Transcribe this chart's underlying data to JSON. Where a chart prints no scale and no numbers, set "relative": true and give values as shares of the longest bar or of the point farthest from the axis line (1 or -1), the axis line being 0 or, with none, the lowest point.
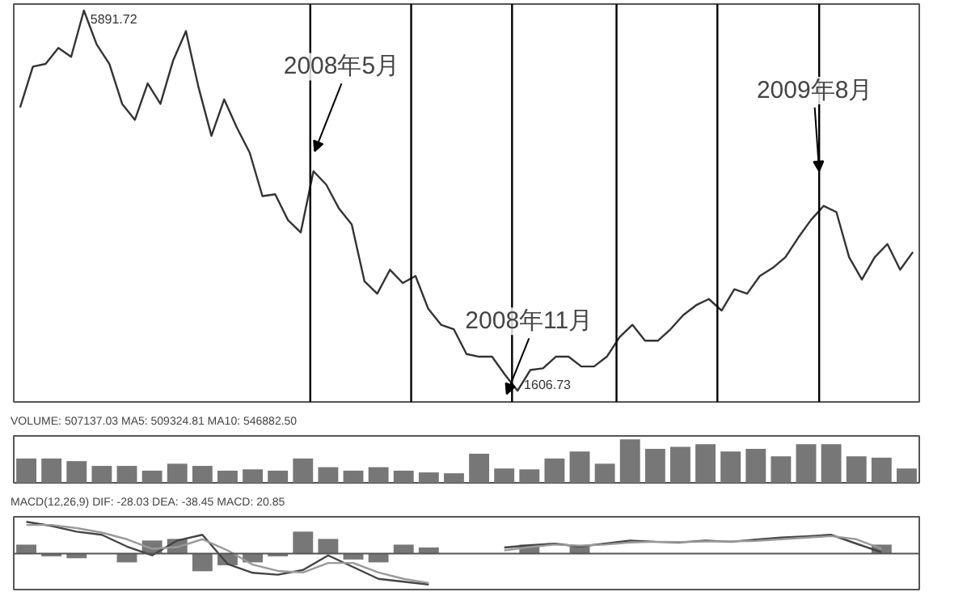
{
  "chart_data": [
    {
      "type": "line",
      "categories": [
        null,
        null,
        null,
        null,
        null,
        null,
        null,
        null,
        null,
        null,
        null,
        null,
        null,
        null,
        null,
        null,
        null,
        null,
        null,
        null,
        null,
        null,
        null,
        null,
        null,
        null,
        null,
        null,
        null,
        null,
        null,
        null,
        null,
        null,
        null,
        null,
        null,
        null,
        null,
        null,
        null,
        null,
        null,
        null,
        null,
        null,
        null,
        null,
        null,
        null,
        null,
        null,
        null,
        null,
        null,
        null,
        null,
        null,
        null,
        null,
        null,
        null,
        null,
        null,
        null,
        null,
        null,
        null,
        null,
        null,
        null
      ],
      "series": [
        {
          "color": "#333333",
          "values": [
            4800,
            5260,
            5290,
            5470,
            5370,
            5891.72,
            5510,
            5290,
            4840,
            4660,
            5070,
            4840,
            5330,
            5660,
            5020,
            4480,
            4890,
            4570,
            4290,
            3800,
            3820,
            3530,
            3390,
            4080,
            3930,
            3660,
            3480,
            2840,
            2700,
            2970,
            2820,
            2900,
            2530,
            2350,
            2300,
            2020,
            1990,
            1990,
            1790,
            1606.73,
            1840,
            1860,
            1990,
            1990,
            1880,
            1880,
            1990,
            2210,
            2350,
            2170,
            2170,
            2300,
            2460,
            2570,
            2640,
            2510,
            2750,
            2700,
            2900,
            2990,
            3110,
            3330,
            3530,
            3690,
            3620,
            3110,
            2860,
            3110,
            3260,
            2970,
            3170
          ],
          "value_labels": [
            null,
            null,
            null,
            null,
            null,
            "5891.72",
            null,
            null,
            null,
            null,
            null,
            null,
            null,
            null,
            null,
            null,
            null,
            null,
            null,
            null,
            null,
            null,
            null,
            null,
            null,
            null,
            null,
            null,
            null,
            null,
            null,
            null,
            null,
            null,
            null,
            null,
            null,
            null,
            null,
            "1606.73",
            null,
            null,
            null,
            null,
            null,
            null,
            null,
            null,
            null,
            null,
            null,
            null,
            null,
            null,
            null,
            null,
            null,
            null,
            null,
            null,
            null,
            null,
            null,
            null,
            null,
            null,
            null,
            null,
            null,
            null,
            null
          ]
        }
      ],
      "ylim": [
        1480,
        5965
      ],
      "tick_labels": false,
      "annotations": [
        "2008年5月",
        "2008年11月",
        "2009年8月"
      ]
    },
    {
      "type": "bar",
      "title": "VOLUME: 507137.03 MA5: 509324.81 MA10: 546882.50",
      "relative": true,
      "tick_labels": false,
      "categories": [
        null,
        null,
        null,
        null,
        null,
        null,
        null,
        null,
        null,
        null,
        null,
        null,
        null,
        null,
        null,
        null,
        null,
        null,
        null,
        null,
        null,
        null,
        null,
        null,
        null,
        null,
        null,
        null,
        null,
        null,
        null,
        null,
        null,
        null,
        null,
        null
      ],
      "series": [
        {
          "color": "#777777",
          "values": [
            0.56,
            0.56,
            0.5,
            0.39,
            0.39,
            0.28,
            0.44,
            0.39,
            0.28,
            0.31,
            0.28,
            0.56,
            0.36,
            0.28,
            0.36,
            0.28,
            0.24,
            0.22,
            0.67,
            0.33,
            0.31,
            0.56,
            0.72,
            0.44,
            1,
            0.78,
            0.83,
            0.89,
            0.72,
            0.78,
            0.61,
            0.89,
            0.89,
            0.61,
            0.58,
            0.33
          ]
        }
      ]
    },
    {
      "type": "bar",
      "title": "MACD(12,26,9) DIF: -28.03 DEA: -38.45 MACD: 20.85",
      "relative": true,
      "tick_labels": false,
      "categories": [
        null,
        null,
        null,
        null,
        null,
        null,
        null,
        null,
        null,
        null,
        null,
        null,
        null,
        null,
        null,
        null,
        null,
        null,
        null,
        null,
        null,
        null,
        null,
        null,
        null,
        null,
        null,
        null,
        null,
        null,
        null,
        null,
        null,
        null,
        null,
        null
      ],
      "series": [
        {
          "color": "#777777",
          "values": [
            0.28,
            -0.09,
            -0.15,
            0,
            -0.28,
            0.41,
            0.46,
            -0.56,
            -0.37,
            -0.28,
            -0.09,
            0.69,
            0.46,
            -0.19,
            -0.28,
            0.28,
            0.19,
            null,
            null,
            null,
            0.28,
            null,
            0.22,
            null,
            null,
            null,
            null,
            null,
            null,
            null,
            null,
            null,
            null,
            null,
            0.28,
            null
          ]
        },
        {
          "type": "line",
          "color": "#444444",
          "values": [
            1,
            0.87,
            0.69,
            0.59,
            0.22,
            -0.06,
            0.41,
            0.59,
            -0.33,
            -0.61,
            -0.67,
            -0.52,
            -0.06,
            -0.43,
            -0.8,
            -0.89,
            -0.98,
            null,
            null,
            0.19,
            0.26,
            0.31,
            0.22,
            0.31,
            0.41,
            0.37,
            0.35,
            0.41,
            0.37,
            0.44,
            0.5,
            0.54,
            0.59,
            0.31,
            0.04,
            null
          ]
        },
        {
          "type": "line",
          "color": "#999999",
          "values": [
            0.9,
            0.9,
            0.8,
            0.66,
            0.45,
            0.15,
            0.2,
            0.45,
            0.1,
            -0.35,
            -0.55,
            -0.6,
            -0.3,
            -0.3,
            -0.6,
            -0.8,
            -0.93,
            null,
            null,
            0.1,
            0.2,
            0.28,
            0.25,
            0.28,
            0.35,
            0.37,
            0.36,
            0.38,
            0.38,
            0.4,
            0.45,
            0.5,
            0.55,
            0.45,
            0.15,
            null
          ]
        }
      ]
    }
  ]
}
